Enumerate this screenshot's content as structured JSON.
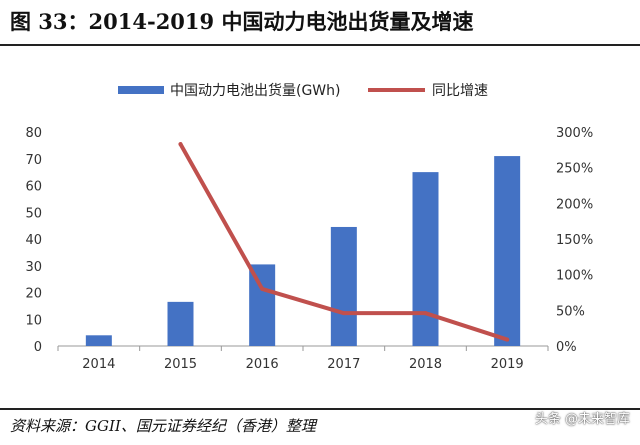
{
  "title": "图 33：2014-2019 中国动力电池出货量及增速",
  "source": "资料来源：GGII、国元证券经纪（香港）整理",
  "watermark": "头条 @未来智库",
  "chart_data": {
    "type": "bar+line",
    "categories": [
      "2014",
      "2015",
      "2016",
      "2017",
      "2018",
      "2019"
    ],
    "series": [
      {
        "name": "中国动力电池出货量(GWh)",
        "type": "bar",
        "axis": "left",
        "color": "#4472C4",
        "values": [
          4,
          16.5,
          30.5,
          44.5,
          65,
          71
        ]
      },
      {
        "name": "同比增速",
        "type": "line",
        "axis": "right",
        "color": "#C0504D",
        "values": [
          null,
          2.83,
          0.8,
          0.46,
          0.46,
          0.09
        ]
      }
    ],
    "y_left": {
      "min": 0,
      "max": 80,
      "ticks": [
        "0",
        "10",
        "20",
        "30",
        "40",
        "50",
        "60",
        "70",
        "80"
      ]
    },
    "y_right": {
      "min": 0,
      "max": 3,
      "ticks": [
        "0%",
        "50%",
        "100%",
        "150%",
        "200%",
        "250%",
        "300%"
      ]
    },
    "legend_position": "top"
  }
}
